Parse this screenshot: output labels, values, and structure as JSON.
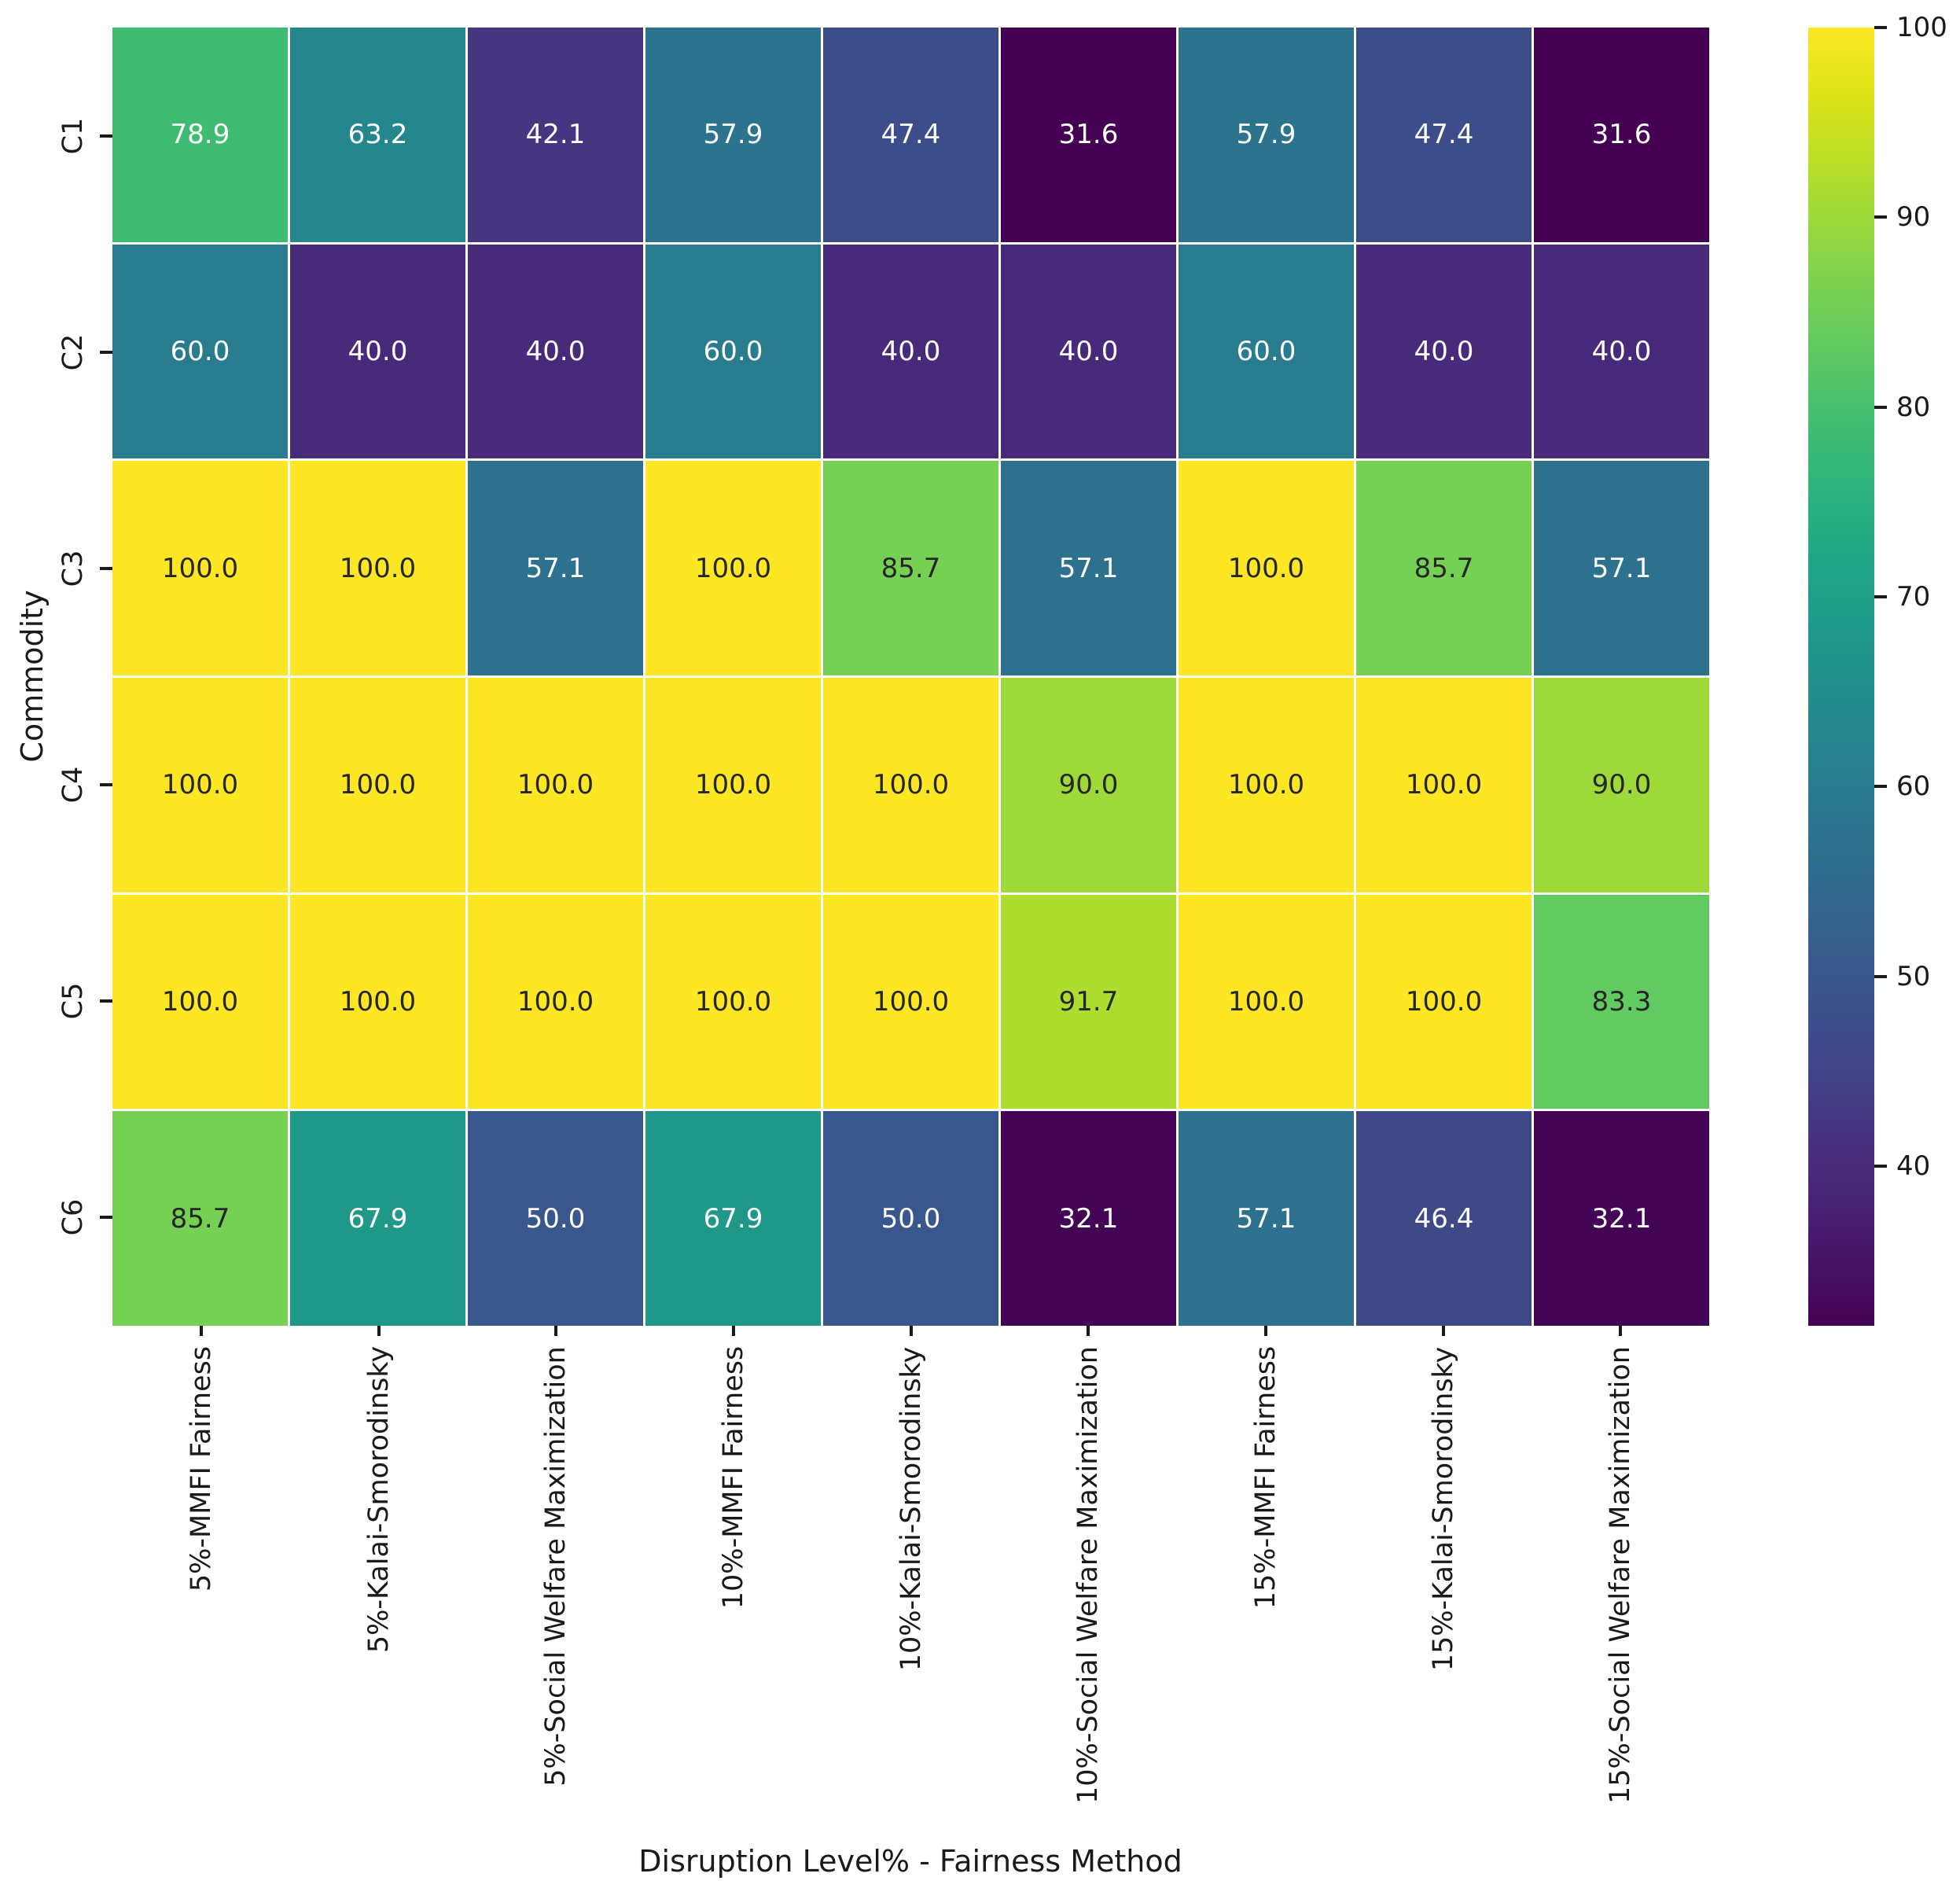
{
  "chart_data": {
    "type": "heatmap",
    "title": "",
    "xlabel": "Disruption Level% - Fairness Method",
    "ylabel": "Commodity",
    "rows": [
      "C1",
      "C2",
      "C3",
      "C4",
      "C5",
      "C6"
    ],
    "columns": [
      "5%-MMFI Fairness",
      "5%-Kalai-Smorodinsky",
      "5%-Social Welfare Maximization",
      "10%-MMFI Fairness",
      "10%-Kalai-Smorodinsky",
      "10%-Social Welfare Maximization",
      "15%-MMFI Fairness",
      "15%-Kalai-Smorodinsky",
      "15%-Social Welfare Maximization"
    ],
    "values": [
      [
        78.9,
        63.2,
        42.1,
        57.9,
        47.4,
        31.6,
        57.9,
        47.4,
        31.6
      ],
      [
        60.0,
        40.0,
        40.0,
        60.0,
        40.0,
        40.0,
        60.0,
        40.0,
        40.0
      ],
      [
        100.0,
        100.0,
        57.1,
        100.0,
        85.7,
        57.1,
        100.0,
        85.7,
        57.1
      ],
      [
        100.0,
        100.0,
        100.0,
        100.0,
        100.0,
        90.0,
        100.0,
        100.0,
        90.0
      ],
      [
        100.0,
        100.0,
        100.0,
        100.0,
        100.0,
        91.7,
        100.0,
        100.0,
        83.3
      ],
      [
        85.7,
        67.9,
        50.0,
        67.9,
        50.0,
        32.1,
        57.1,
        46.4,
        32.1
      ]
    ],
    "value_format_decimals": 1,
    "colormap": "viridis",
    "vmin": 31.6,
    "vmax": 100,
    "colorbar_ticks": [
      100,
      90,
      80,
      70,
      60,
      50,
      40
    ],
    "legend_position": "right-colorbar",
    "grid": "white cell separators",
    "colors": {
      "background": "#ffffff",
      "grid_line": "#ffffff",
      "annotation_dark": "#262626",
      "annotation_light": "#ffffff",
      "tick": "#1a1a1a",
      "viridis_min": "#440154",
      "viridis_max": "#fde725"
    },
    "colormap_stops": [
      [
        68,
        1,
        84
      ],
      [
        71,
        19,
        101
      ],
      [
        72,
        36,
        117
      ],
      [
        70,
        52,
        128
      ],
      [
        65,
        68,
        135
      ],
      [
        59,
        82,
        139
      ],
      [
        53,
        95,
        141
      ],
      [
        47,
        108,
        142
      ],
      [
        42,
        120,
        142
      ],
      [
        37,
        132,
        142
      ],
      [
        33,
        145,
        140
      ],
      [
        30,
        156,
        137
      ],
      [
        34,
        168,
        132
      ],
      [
        47,
        180,
        124
      ],
      [
        68,
        190,
        112
      ],
      [
        94,
        201,
        98
      ],
      [
        122,
        209,
        81
      ],
      [
        155,
        217,
        60
      ],
      [
        189,
        223,
        38
      ],
      [
        223,
        227,
        24
      ],
      [
        253,
        231,
        37
      ]
    ]
  }
}
